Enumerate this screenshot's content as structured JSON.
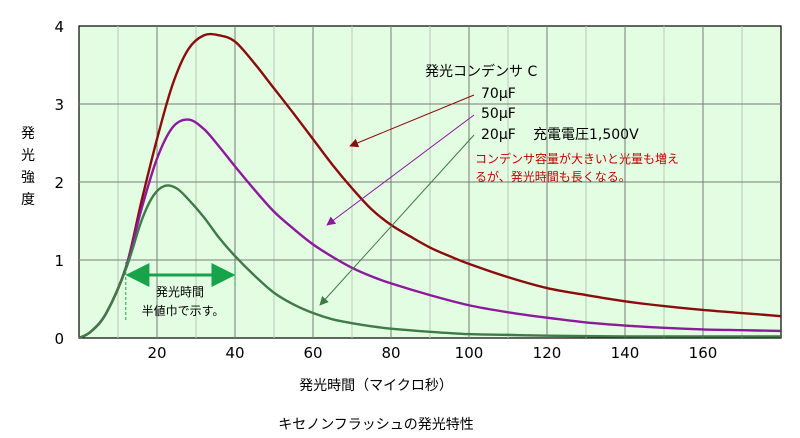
{
  "chart_data": {
    "type": "line",
    "title": "キセノンフラッシュの発光特性",
    "xlabel": "発光時間（マイクロ秒）",
    "ylabel": "発光強度",
    "xlim": [
      0,
      180
    ],
    "ylim": [
      0,
      4
    ],
    "xticks": [
      20,
      40,
      60,
      80,
      100,
      120,
      140,
      160
    ],
    "yticks": [
      0,
      1,
      2,
      3,
      4
    ],
    "grid": true,
    "legend_title": "発光コンデンサ C",
    "charge_voltage_label": "充電電圧1,500V",
    "note_line1": "コンデンサ容量が大きいと光量も増え",
    "note_line2": "るが、発光時間も長くなる。",
    "fwhm_label_line1": "発光時間",
    "fwhm_label_line2": "半値巾で示す。",
    "fwhm_range": [
      12,
      40
    ],
    "series": [
      {
        "name": "70μF",
        "color": "#8b0c0c",
        "x": [
          0,
          3,
          7,
          12,
          16,
          20,
          24,
          28,
          32,
          36,
          40,
          45,
          50,
          55,
          60,
          65,
          70,
          75,
          80,
          85,
          90,
          95,
          100,
          110,
          120,
          130,
          140,
          150,
          160,
          170,
          180
        ],
        "y": [
          0,
          0.08,
          0.32,
          0.9,
          1.75,
          2.55,
          3.25,
          3.7,
          3.88,
          3.88,
          3.8,
          3.52,
          3.2,
          2.88,
          2.55,
          2.22,
          1.92,
          1.65,
          1.45,
          1.3,
          1.16,
          1.05,
          0.95,
          0.78,
          0.64,
          0.55,
          0.47,
          0.41,
          0.36,
          0.32,
          0.28
        ]
      },
      {
        "name": "50μF",
        "color": "#8b1a9c",
        "x": [
          0,
          3,
          7,
          12,
          16,
          20,
          24,
          28,
          32,
          36,
          40,
          45,
          50,
          55,
          60,
          65,
          70,
          75,
          80,
          90,
          100,
          110,
          120,
          130,
          140,
          150,
          160,
          170,
          180
        ],
        "y": [
          0,
          0.08,
          0.32,
          0.9,
          1.65,
          2.3,
          2.7,
          2.8,
          2.68,
          2.45,
          2.2,
          1.9,
          1.62,
          1.4,
          1.2,
          1.04,
          0.9,
          0.79,
          0.7,
          0.55,
          0.42,
          0.33,
          0.26,
          0.2,
          0.16,
          0.13,
          0.11,
          0.1,
          0.09
        ]
      },
      {
        "name": "20μF",
        "color": "#3f7a47",
        "x": [
          0,
          3,
          7,
          12,
          16,
          19,
          22,
          25,
          28,
          32,
          36,
          40,
          45,
          50,
          55,
          60,
          65,
          70,
          75,
          80,
          90,
          100,
          110,
          120,
          140,
          160,
          180
        ],
        "y": [
          0,
          0.08,
          0.32,
          0.88,
          1.5,
          1.82,
          1.95,
          1.92,
          1.78,
          1.55,
          1.28,
          1.05,
          0.8,
          0.58,
          0.43,
          0.32,
          0.24,
          0.19,
          0.15,
          0.12,
          0.08,
          0.05,
          0.04,
          0.03,
          0.02,
          0.02,
          0.02
        ]
      }
    ]
  }
}
